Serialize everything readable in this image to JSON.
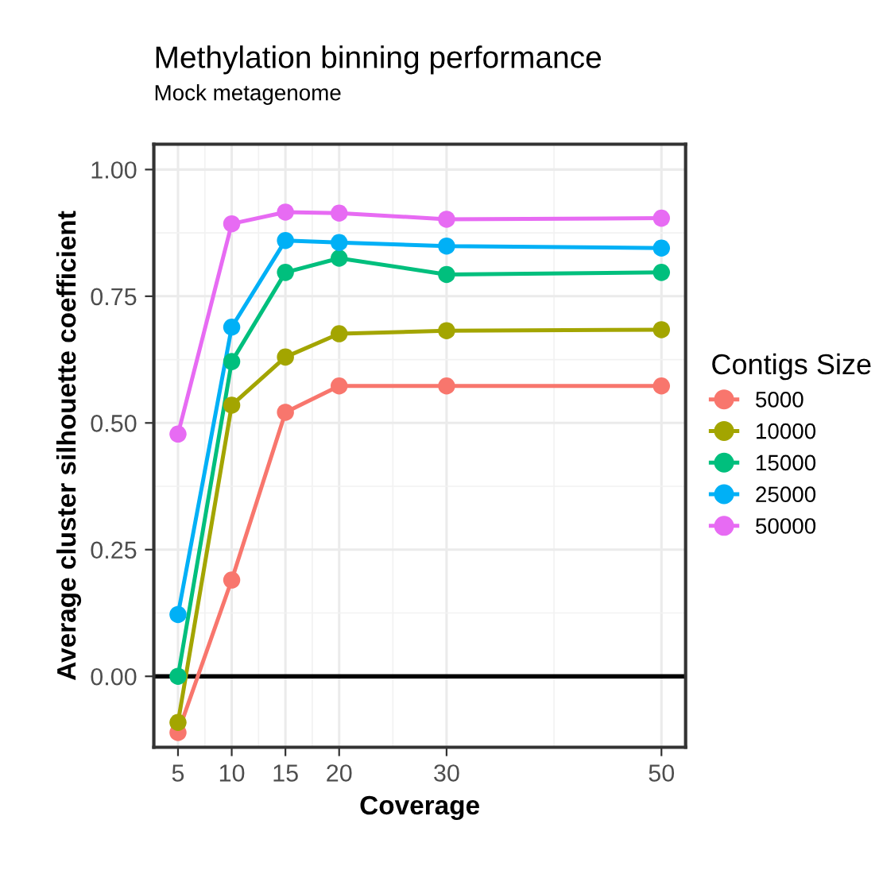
{
  "chart_data": {
    "type": "line",
    "title": "Methylation binning performance",
    "subtitle": "Mock metagenome",
    "xlabel": "Coverage",
    "ylabel": "Average cluster silhouette coefficient",
    "legend_title": "Contigs Size",
    "x": [
      5,
      10,
      15,
      20,
      30,
      50
    ],
    "series": [
      {
        "name": "5000",
        "color": "#f8766d",
        "values": [
          -0.111,
          0.19,
          0.521,
          0.573,
          0.573,
          0.573
        ]
      },
      {
        "name": "10000",
        "color": "#a3a500",
        "values": [
          -0.091,
          0.535,
          0.63,
          0.676,
          0.682,
          0.684
        ]
      },
      {
        "name": "15000",
        "color": "#00bf7d",
        "values": [
          0.0,
          0.621,
          0.797,
          0.825,
          0.793,
          0.797
        ]
      },
      {
        "name": "25000",
        "color": "#00b0f6",
        "values": [
          0.122,
          0.689,
          0.86,
          0.856,
          0.849,
          0.845
        ]
      },
      {
        "name": "50000",
        "color": "#e76bf3",
        "values": [
          0.478,
          0.893,
          0.916,
          0.914,
          0.902,
          0.904
        ]
      }
    ],
    "xlim": [
      2.75,
      52.25
    ],
    "xticks": [
      5,
      10,
      15,
      20,
      30,
      50
    ],
    "ylim": [
      -0.14,
      1.05
    ],
    "yticks": [
      {
        "value": 0,
        "label": "0.00"
      },
      {
        "value": 0.25,
        "label": "0.25"
      },
      {
        "value": 0.5,
        "label": "0.50"
      },
      {
        "value": 0.75,
        "label": "0.75"
      },
      {
        "value": 1,
        "label": "1.00"
      }
    ],
    "ref_lines": [
      {
        "axis": "y",
        "value": 0,
        "color": "#000000"
      }
    ],
    "grid": true,
    "legend": "right",
    "marker": "circle",
    "line_style": "solid"
  }
}
